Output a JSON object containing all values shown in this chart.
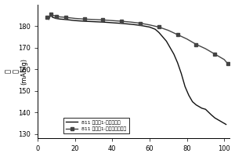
{
  "title": "",
  "xlabel": "",
  "ylabel_top": "量",
  "ylabel_mid": "容",
  "ylabel_bot": "(mAh/g)",
  "xlim": [
    0,
    103
  ],
  "ylim": [
    128,
    190
  ],
  "yticks": [
    130,
    140,
    150,
    160,
    170,
    180
  ],
  "xticks": [
    0,
    20,
    40,
    60,
    80,
    100
  ],
  "legend_entries": [
    "811 对比例1-氧化锡包覆",
    "811 试验例1-锅锡氧化锡包覆"
  ],
  "line1_color": "#111111",
  "line2_color": "#444444",
  "marker2": "s",
  "line1_x": [
    5,
    6,
    7,
    8,
    10,
    12,
    15,
    20,
    25,
    30,
    35,
    40,
    45,
    50,
    55,
    60,
    63,
    65,
    67,
    69,
    71,
    73,
    75,
    77,
    79,
    81,
    83,
    85,
    88,
    90,
    93,
    95,
    97,
    99,
    101
  ],
  "line1_y": [
    184.5,
    183.5,
    185.0,
    184.0,
    183.5,
    183.2,
    183.0,
    182.5,
    182.2,
    182.0,
    181.8,
    181.5,
    181.2,
    180.8,
    180.3,
    179.5,
    178.5,
    177.0,
    175.0,
    173.0,
    170.0,
    167.0,
    163.0,
    158.0,
    152.0,
    148.0,
    145.0,
    143.5,
    142.0,
    141.5,
    139.0,
    137.5,
    136.5,
    135.5,
    134.5
  ],
  "line2_x": [
    5,
    6,
    7,
    8,
    10,
    12,
    15,
    20,
    25,
    30,
    35,
    40,
    45,
    50,
    55,
    60,
    65,
    70,
    75,
    80,
    85,
    90,
    95,
    100,
    102
  ],
  "line2_y": [
    184.0,
    183.0,
    185.5,
    185.0,
    184.5,
    184.2,
    184.0,
    183.5,
    183.2,
    183.0,
    182.8,
    182.5,
    182.2,
    181.8,
    181.3,
    180.5,
    179.5,
    178.0,
    176.0,
    174.0,
    171.5,
    169.5,
    167.0,
    164.5,
    162.5
  ]
}
